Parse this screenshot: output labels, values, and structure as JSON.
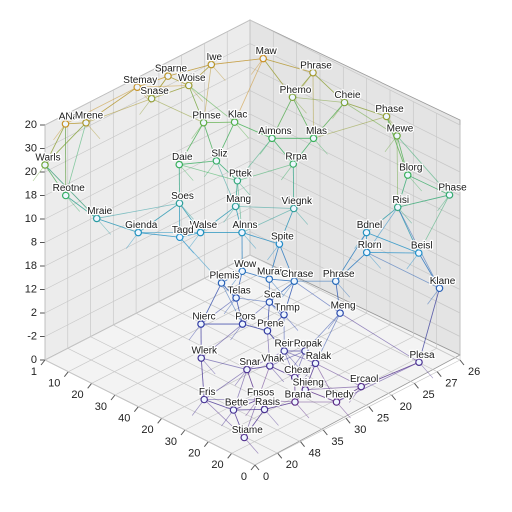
{
  "chart_data": {
    "type": "network3d",
    "labels": [
      "Maw",
      "Iwe",
      "Sparne",
      "Woise",
      "Phrase",
      "Stemay",
      "Snase",
      "Phemo",
      "Cheie",
      "Phase",
      "Mewe",
      "Klac",
      "Aimons",
      "Mlas",
      "ANa",
      "Mrene",
      "Phnse",
      "Blorg",
      "Warls",
      "Daie",
      "Sliz",
      "Pttek",
      "Rrpa",
      "Risi",
      "Phase",
      "Soes",
      "Mang",
      "Viegnk",
      "Bdnel",
      "Reotne",
      "Walse",
      "Alnns",
      "Spite",
      "Rlorn",
      "Beisl",
      "Mraie",
      "Gienda",
      "Tagd",
      "Wow",
      "Muraie",
      "Chrase",
      "Phrase",
      "Klane",
      "Plemis",
      "Telas",
      "Sca",
      "Meng",
      "Tnmp",
      "Pors",
      "Prene",
      "Nierc",
      "Reink",
      "Popak",
      "Vhak",
      "Ralak",
      "Wlerk",
      "Snar",
      "Chear",
      "Shieng",
      "Brana",
      "Fnsos",
      "Plesa",
      "Ercaol",
      "Phedy",
      "Fris",
      "Stiame",
      "Bette",
      "Rasis"
    ],
    "x": [
      82,
      95,
      100,
      95,
      70,
      100,
      100,
      70,
      55,
      35,
      30,
      80,
      70,
      60,
      100,
      100,
      85,
      20,
      100,
      80,
      75,
      65,
      55,
      15,
      5,
      75,
      60,
      45,
      25,
      95,
      65,
      55,
      45,
      20,
      5,
      90,
      80,
      70,
      50,
      42,
      35,
      25,
      0,
      55,
      50,
      40,
      20,
      35,
      45,
      38,
      55,
      30,
      25,
      32,
      20,
      50,
      38,
      25,
      20,
      20,
      30,
      0,
      8,
      10,
      32,
      10,
      20,
      15
    ],
    "y": [
      88,
      76,
      60,
      65,
      100,
      45,
      52,
      90,
      100,
      100,
      100,
      72,
      80,
      90,
      10,
      20,
      62,
      95,
      0,
      45,
      58,
      58,
      75,
      85,
      100,
      40,
      52,
      65,
      80,
      5,
      40,
      50,
      58,
      75,
      85,
      15,
      25,
      35,
      45,
      50,
      55,
      65,
      90,
      40,
      42,
      48,
      62,
      50,
      40,
      45,
      30,
      45,
      50,
      40,
      50,
      25,
      35,
      45,
      45,
      40,
      32,
      80,
      60,
      50,
      8,
      5,
      10,
      20
    ],
    "z": [
      97,
      94,
      94,
      90,
      91,
      96,
      88,
      85,
      85,
      88,
      82,
      78,
      72,
      72,
      96,
      92,
      80,
      72,
      83,
      72,
      70,
      66,
      70,
      65,
      68,
      60,
      60,
      60,
      52,
      70,
      52,
      52,
      48,
      48,
      50,
      58,
      52,
      50,
      40,
      38,
      38,
      38,
      35,
      35,
      30,
      30,
      28,
      26,
      22,
      20,
      22,
      15,
      15,
      10,
      12,
      12,
      8,
      6,
      3,
      0,
      0,
      8,
      3,
      0,
      10,
      5,
      10,
      8
    ],
    "xlim": [
      0,
      100
    ],
    "ylim": [
      0,
      100
    ],
    "zlim": [
      0,
      100
    ],
    "xaxis_labels": [
      0,
      20,
      20,
      30,
      20,
      40,
      30,
      20,
      10,
      1
    ],
    "yaxis_labels": [
      0,
      20,
      48,
      35,
      30,
      25,
      20,
      25,
      27,
      26
    ],
    "zaxis_labels": [
      0,
      -2,
      2,
      12,
      18,
      8,
      10,
      18,
      20,
      30,
      20
    ],
    "colormap": [
      "#5b2a86",
      "#2a3fa8",
      "#1f8fc9",
      "#3cb44b",
      "#e08a1e"
    ],
    "grid": true
  }
}
